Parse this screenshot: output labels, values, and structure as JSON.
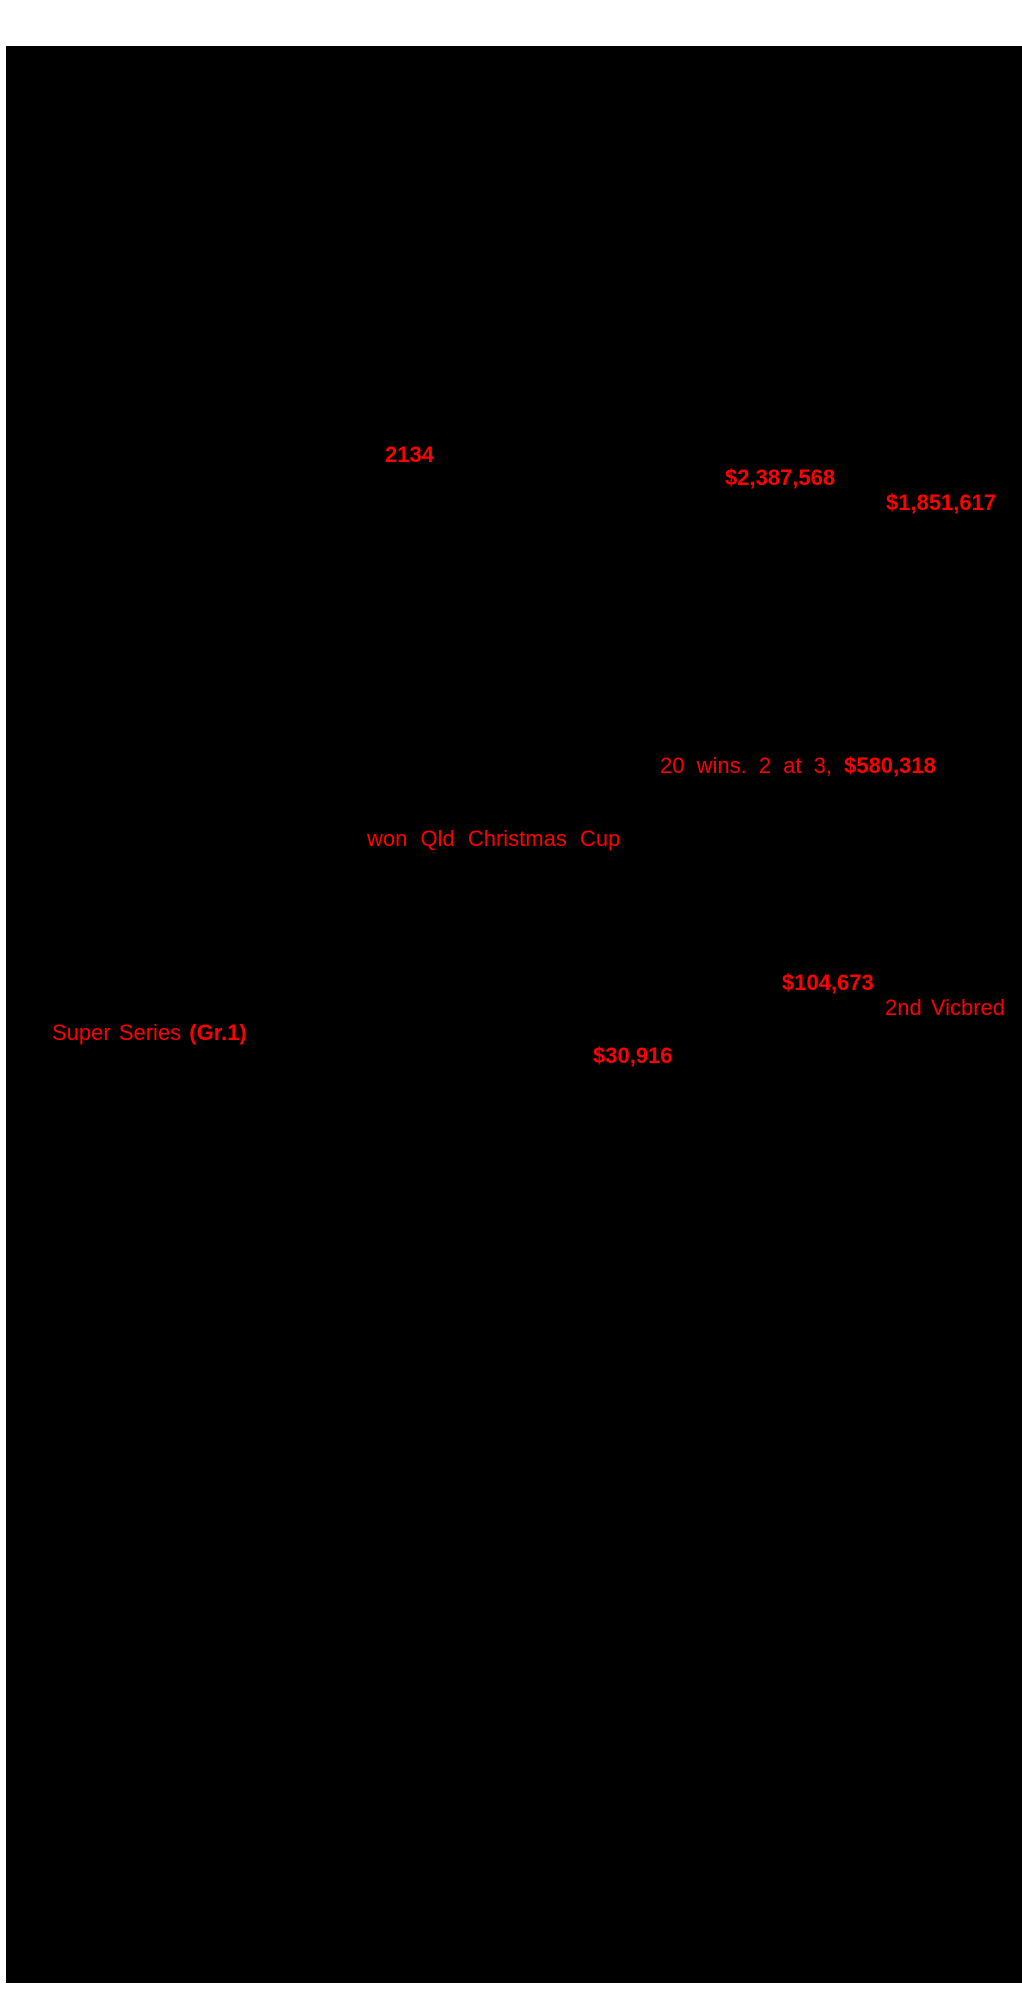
{
  "page": {
    "background_color": "#ffffff",
    "content_block_color": "#000000",
    "accent_red": "#ff0000"
  },
  "highlights": {
    "time": {
      "text": "2134"
    },
    "sire_earnings": {
      "text": "$2,387,568"
    },
    "damsire_earnings": {
      "text": "$1,851,617"
    },
    "wins_line": {
      "prefix": "20 wins. 2 at 3, ",
      "amount": "$580,318"
    },
    "race_won": {
      "text": "won Qld Christmas Cup"
    },
    "earnings_104": {
      "text": "$104,673"
    },
    "placing": {
      "text": "2nd Vicbred"
    },
    "series": {
      "prefix": "Super Series ",
      "group": "(Gr.1)"
    },
    "earnings_30": {
      "text": "$30,916"
    }
  }
}
